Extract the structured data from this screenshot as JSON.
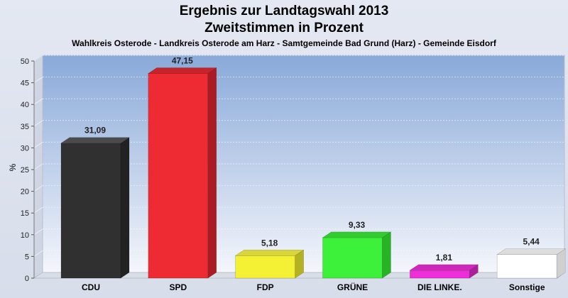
{
  "chart_data": {
    "type": "bar",
    "title": "Ergebnis zur Landtagswahl 2013",
    "subtitle": "Zweitstimmen in Prozent",
    "subtitle2": "Wahlkreis Osterode - Landkreis Osterode am Harz - Samtgemeinde Bad Grund (Harz) - Gemeinde Eisdorf",
    "ylabel": "%",
    "ylim": [
      0,
      50
    ],
    "yticks": [
      0,
      5,
      10,
      15,
      20,
      25,
      30,
      35,
      40,
      45,
      50
    ],
    "grid": true,
    "categories": [
      "CDU",
      "SPD",
      "FDP",
      "GRÜNE",
      "DIE LINKE.",
      "Sonstige"
    ],
    "values": [
      31.09,
      47.15,
      5.18,
      9.33,
      1.81,
      5.44
    ],
    "value_labels": [
      "31,09",
      "47,15",
      "5,18",
      "9,33",
      "1,81",
      "5,44"
    ],
    "colors": [
      "#303030",
      "#ee2b33",
      "#f4f033",
      "#3df03a",
      "#ee2ed8",
      "#ffffff"
    ],
    "side_colors": [
      "#222222",
      "#a91c23",
      "#b5b124",
      "#2ab227",
      "#ad1e9c",
      "#d0d0d0"
    ],
    "top_colors": [
      "#4b4b4b",
      "#c7232b",
      "#d9d53a",
      "#33cc30",
      "#cf28bb",
      "#dddddd"
    ]
  }
}
